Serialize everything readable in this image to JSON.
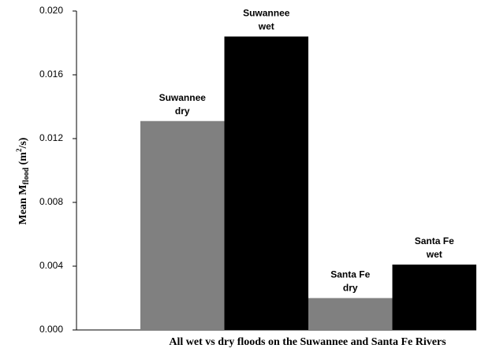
{
  "chart_data": {
    "type": "bar",
    "x_label": "All wet vs dry floods on the Suwannee and Santa Fe Rivers",
    "y_label": [
      "Mean M",
      "flood",
      " (m",
      "2",
      "/s)"
    ],
    "categories": [
      [
        "Suwannee",
        "dry"
      ],
      [
        "Suwannee",
        "wet"
      ],
      [
        "Santa Fe",
        "dry"
      ],
      [
        "Santa Fe",
        "wet"
      ]
    ],
    "values": [
      0.0131,
      0.0184,
      0.002,
      0.0041
    ],
    "colors": [
      "#808080",
      "#000000",
      "#808080",
      "#000000"
    ],
    "ylim": [
      0,
      0.02
    ],
    "yticks": [
      {
        "value": 0,
        "label": "0.000"
      },
      0.004,
      0.008,
      0.012,
      0.016,
      {
        "value": 0.02,
        "label": "0.020"
      }
    ],
    "grid": false
  }
}
